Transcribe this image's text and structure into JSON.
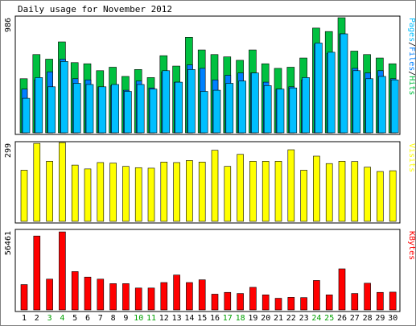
{
  "chart_data": {
    "type": "bar",
    "title": "Daily usage for November 2012",
    "days": [
      "1",
      "2",
      "3",
      "4",
      "5",
      "6",
      "7",
      "8",
      "9",
      "10",
      "11",
      "12",
      "13",
      "14",
      "15",
      "16",
      "17",
      "18",
      "19",
      "20",
      "21",
      "22",
      "23",
      "24",
      "25",
      "26",
      "27",
      "28",
      "29",
      "30"
    ],
    "weekend_days": [
      "3",
      "4",
      "10",
      "11",
      "17",
      "18",
      "24",
      "25"
    ],
    "panels": [
      {
        "name": "pages-files-hits",
        "ymax_label": "986",
        "ymax": 986,
        "legend": [
          "Pages",
          "Files",
          "Hits"
        ],
        "series": [
          {
            "name": "Hits",
            "color": "#00c040",
            "values": [
              470,
              680,
              640,
              790,
              610,
              600,
              540,
              570,
              490,
              550,
              480,
              670,
              580,
              830,
              720,
              680,
              660,
              630,
              720,
              600,
              560,
              570,
              650,
              910,
              880,
              1000,
              710,
              680,
              650,
              600
            ]
          },
          {
            "name": "Files",
            "color": "#0080ff",
            "values": [
              380,
              460,
              530,
              640,
              470,
              460,
              400,
              410,
              370,
              450,
              390,
              530,
              440,
              590,
              560,
              460,
              500,
              520,
              520,
              440,
              380,
              400,
              460,
              770,
              690,
              860,
              560,
              520,
              540,
              470
            ]
          },
          {
            "name": "Pages",
            "color": "#00bfff",
            "values": [
              300,
              480,
              400,
              620,
              430,
              420,
              400,
              420,
              360,
              420,
              380,
              540,
              440,
              550,
              360,
              370,
              430,
              450,
              520,
              410,
              380,
              390,
              480,
              780,
              700,
              860,
              540,
              470,
              490,
              460
            ]
          }
        ]
      },
      {
        "name": "visits",
        "ymax_label": "299",
        "ymax": 299,
        "legend": [
          "Visits"
        ],
        "series": [
          {
            "name": "Visits",
            "color": "#ffff00",
            "values": [
              200,
              305,
              235,
              308,
              220,
              205,
              230,
              228,
              215,
              210,
              208,
              232,
              230,
              238,
              232,
              278,
              215,
              262,
              235,
              235,
              235,
              280,
              200,
              255,
              226,
              235,
              234,
              212,
              195,
              198
            ]
          }
        ]
      },
      {
        "name": "kbytes",
        "ymax_label": "56461",
        "ymax": 56461,
        "legend": [
          "KBytes"
        ],
        "series": [
          {
            "name": "KBytes",
            "color": "#ff0000",
            "values": [
              18500,
              54000,
              22500,
              57000,
              28000,
              24000,
              22500,
              19200,
              19200,
              16000,
              16000,
              20000,
              25500,
              20000,
              22000,
              11500,
              12800,
              12000,
              16500,
              11000,
              8500,
              9200,
              9000,
              21500,
              11000,
              30000,
              12000,
              19500,
              12800,
              13000
            ]
          }
        ]
      }
    ]
  }
}
